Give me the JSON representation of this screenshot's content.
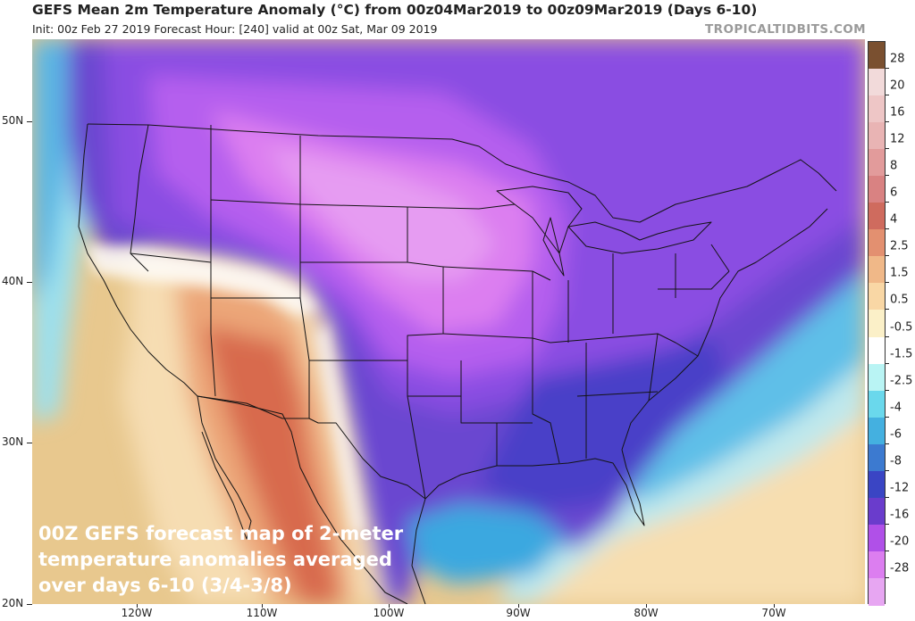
{
  "header": {
    "title": "GEFS Mean 2m Temperature Anomaly (°C) from 00z04Mar2019 to 00z09Mar2019 (Days 6-10)",
    "subtitle": "Init: 00z Feb 27 2019    Forecast Hour: [240]    valid at 00z Sat, Mar 09 2019",
    "brand": "TROPICALTIDBITS.COM"
  },
  "caption": {
    "line1": "00Z GEFS forecast map of 2-meter",
    "line2": "temperature anomalies averaged",
    "line3": "over days 6-10 (3/4-3/8)"
  },
  "axes": {
    "lat_labels": [
      "50N",
      "40N",
      "30N",
      "20N"
    ],
    "lon_labels": [
      "120W",
      "110W",
      "100W",
      "90W",
      "80W",
      "70W"
    ]
  },
  "colorbar": {
    "labels": [
      "28",
      "20",
      "16",
      "12",
      "8",
      "6",
      "4",
      "2.5",
      "1.5",
      "0.5",
      "-0.5",
      "-1.5",
      "-2.5",
      "-4",
      "-6",
      "-8",
      "-12",
      "-16",
      "-20",
      "-28"
    ],
    "colors": [
      "#7a5030",
      "#f2dada",
      "#eec6c6",
      "#e9b4b4",
      "#e29b9b",
      "#d98282",
      "#cf6b5e",
      "#e39070",
      "#f0b888",
      "#f9d7a5",
      "#fbf0c8",
      "#ffffff",
      "#b9f4f4",
      "#6ad8ec",
      "#44b0e0",
      "#3c7ad0",
      "#3a45c4",
      "#6a3ccc",
      "#b050e8",
      "#dc7ef0",
      "#e7a6f2"
    ]
  }
}
